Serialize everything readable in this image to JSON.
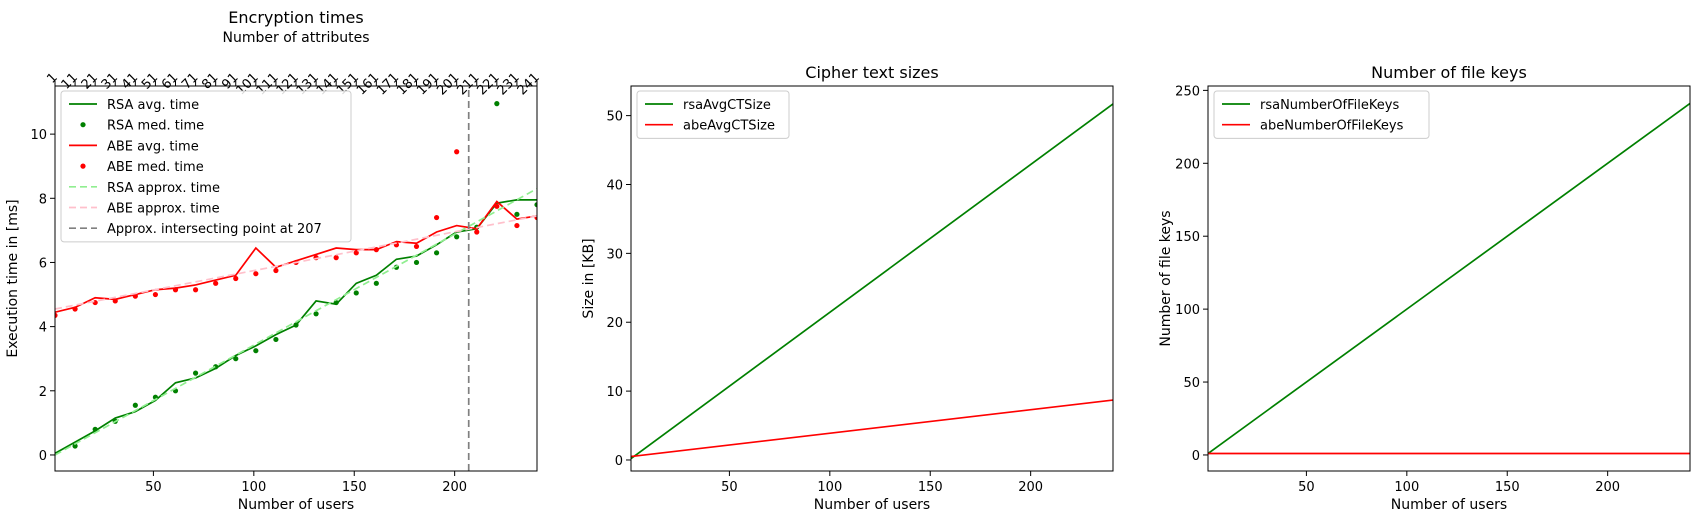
{
  "figure": {
    "background": "#ffffff"
  },
  "chart_data": [
    {
      "type": "line",
      "title": "Encryption times",
      "xlabel": "Number of users",
      "ylabel": "Execution time in [ms]",
      "top_xlabel": "Number of attributes",
      "top_ticks": [
        {
          "label": "1",
          "x": 1
        },
        {
          "label": "11",
          "x": 11
        },
        {
          "label": "21",
          "x": 21
        },
        {
          "label": "31",
          "x": 31
        },
        {
          "label": "41",
          "x": 41
        },
        {
          "label": "51",
          "x": 51
        },
        {
          "label": "61",
          "x": 61
        },
        {
          "label": "71",
          "x": 71
        },
        {
          "label": "81",
          "x": 81
        },
        {
          "label": "91",
          "x": 91
        },
        {
          "label": "101",
          "x": 101
        },
        {
          "label": "111",
          "x": 111
        },
        {
          "label": "121",
          "x": 121
        },
        {
          "label": "131",
          "x": 131
        },
        {
          "label": "141",
          "x": 141
        },
        {
          "label": "151",
          "x": 151
        },
        {
          "label": "161",
          "x": 161
        },
        {
          "label": "171",
          "x": 171
        },
        {
          "label": "181",
          "x": 181
        },
        {
          "label": "191",
          "x": 191
        },
        {
          "label": "201",
          "x": 201
        },
        {
          "label": "211",
          "x": 211
        },
        {
          "label": "221",
          "x": 221
        },
        {
          "label": "231",
          "x": 231
        },
        {
          "label": "241",
          "x": 241
        }
      ],
      "xlim": [
        1,
        241
      ],
      "ylim": [
        -0.5,
        11.5
      ],
      "xticks": [
        50,
        100,
        150,
        200
      ],
      "yticks": [
        0,
        2,
        4,
        6,
        8,
        10
      ],
      "grid": false,
      "legend_position": "upper-left",
      "series": [
        {
          "name": "RSA avg. time",
          "kind": "line",
          "color": "#008000",
          "dash": "none",
          "x": [
            1,
            11,
            21,
            31,
            41,
            51,
            61,
            71,
            81,
            91,
            101,
            111,
            121,
            131,
            141,
            151,
            161,
            171,
            181,
            191,
            201,
            211,
            221,
            231,
            241
          ],
          "y": [
            0.05,
            0.4,
            0.75,
            1.15,
            1.35,
            1.7,
            2.25,
            2.4,
            2.7,
            3.1,
            3.4,
            3.75,
            4.05,
            4.8,
            4.7,
            5.35,
            5.6,
            6.1,
            6.2,
            6.55,
            6.95,
            7.05,
            7.85,
            7.95,
            7.95
          ]
        },
        {
          "name": "RSA med. time",
          "kind": "points",
          "color": "#008000",
          "x": [
            11,
            21,
            31,
            41,
            51,
            61,
            71,
            81,
            91,
            101,
            111,
            121,
            131,
            141,
            151,
            161,
            171,
            181,
            191,
            201,
            211,
            221,
            231,
            241
          ],
          "y": [
            0.28,
            0.8,
            1.05,
            1.55,
            1.8,
            2.0,
            2.55,
            2.75,
            3.0,
            3.25,
            3.6,
            4.05,
            4.4,
            4.75,
            5.05,
            5.35,
            5.85,
            6.0,
            6.3,
            6.8,
            7.1,
            10.95,
            7.5,
            7.8
          ]
        },
        {
          "name": "ABE avg. time",
          "kind": "line",
          "color": "#ff0000",
          "dash": "none",
          "x": [
            1,
            11,
            21,
            31,
            41,
            51,
            61,
            71,
            81,
            91,
            101,
            111,
            121,
            131,
            141,
            151,
            161,
            171,
            181,
            191,
            201,
            211,
            221,
            231,
            241
          ],
          "y": [
            4.45,
            4.6,
            4.9,
            4.85,
            5.0,
            5.15,
            5.2,
            5.3,
            5.45,
            5.6,
            6.45,
            5.85,
            6.05,
            6.25,
            6.45,
            6.4,
            6.4,
            6.65,
            6.6,
            6.95,
            7.15,
            7.05,
            7.9,
            7.35,
            7.45
          ]
        },
        {
          "name": "ABE med. time",
          "kind": "points",
          "color": "#ff0000",
          "x": [
            1,
            11,
            21,
            31,
            41,
            51,
            61,
            71,
            81,
            91,
            101,
            111,
            121,
            131,
            141,
            151,
            161,
            171,
            181,
            191,
            201,
            211,
            221,
            231,
            241
          ],
          "y": [
            4.35,
            4.55,
            4.75,
            4.8,
            4.95,
            5.0,
            5.15,
            5.15,
            5.35,
            5.5,
            5.65,
            5.75,
            6.0,
            6.15,
            6.15,
            6.3,
            6.4,
            6.55,
            6.5,
            7.4,
            9.45,
            6.95,
            7.75,
            7.15,
            7.4
          ]
        },
        {
          "name": "RSA approx. time",
          "kind": "line",
          "color": "#90ee90",
          "dash": "7,4",
          "x": [
            1,
            241
          ],
          "y": [
            0.0,
            8.3
          ]
        },
        {
          "name": "ABE approx. time",
          "kind": "line",
          "color": "#ffc0cb",
          "dash": "7,4",
          "x": [
            1,
            241
          ],
          "y": [
            4.55,
            7.45
          ]
        },
        {
          "name": "Approx. intersecting point at 207",
          "kind": "vline",
          "color": "#808080",
          "dash": "7,4",
          "x": [
            207,
            207
          ],
          "y": [
            -0.5,
            11.5
          ]
        }
      ]
    },
    {
      "type": "line",
      "title": "Cipher text sizes",
      "xlabel": "Number of users",
      "ylabel": "Size in [KB]",
      "xlim": [
        1,
        241
      ],
      "ylim": [
        -1.6,
        54.3
      ],
      "xticks": [
        50,
        100,
        150,
        200
      ],
      "yticks": [
        0,
        10,
        20,
        30,
        40,
        50
      ],
      "grid": false,
      "legend_position": "upper-left",
      "series": [
        {
          "name": "rsaAvgCTSize",
          "kind": "line",
          "color": "#008000",
          "dash": "none",
          "x": [
            1,
            241
          ],
          "y": [
            0.2,
            51.7
          ]
        },
        {
          "name": "abeAvgCTSize",
          "kind": "line",
          "color": "#ff0000",
          "dash": "none",
          "x": [
            1,
            241
          ],
          "y": [
            0.5,
            8.7
          ]
        }
      ]
    },
    {
      "type": "line",
      "title": "Number of file keys",
      "xlabel": "Number of users",
      "ylabel": "Number of file keys",
      "xlim": [
        1,
        241
      ],
      "ylim": [
        -11,
        253
      ],
      "xticks": [
        50,
        100,
        150,
        200
      ],
      "yticks": [
        0,
        50,
        100,
        150,
        200,
        250
      ],
      "grid": false,
      "legend_position": "upper-left",
      "series": [
        {
          "name": "rsaNumberOfFileKeys",
          "kind": "line",
          "color": "#008000",
          "dash": "none",
          "x": [
            1,
            241
          ],
          "y": [
            1,
            241
          ]
        },
        {
          "name": "abeNumberOfFileKeys",
          "kind": "line",
          "color": "#ff0000",
          "dash": "none",
          "x": [
            1,
            241
          ],
          "y": [
            1,
            1
          ]
        }
      ]
    }
  ]
}
